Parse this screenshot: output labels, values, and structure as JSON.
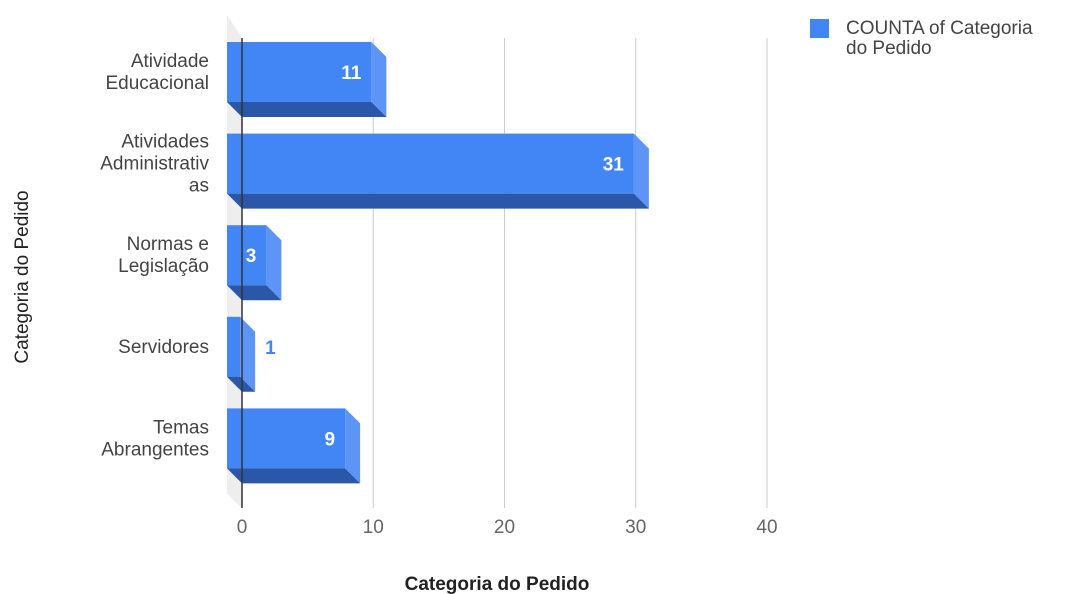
{
  "chart_data": {
    "type": "bar",
    "orientation": "horizontal",
    "categories": [
      [
        "Atividade",
        "Educacional"
      ],
      [
        "Atividades",
        "Administrativ",
        "as"
      ],
      [
        "Normas e",
        "Legislação"
      ],
      [
        "Servidores"
      ],
      [
        "Temas",
        "Abrangentes"
      ]
    ],
    "series": [
      {
        "name": "COUNTA of Categoria do Pedido",
        "values": [
          11,
          31,
          3,
          1,
          9
        ]
      }
    ],
    "data_labels": [
      "11",
      "31",
      "3",
      "1",
      "9"
    ],
    "xlabel": "Categoria do Pedido",
    "ylabel": "Categoria do Pedido",
    "xlim": [
      0,
      40
    ],
    "xticks": [
      "0",
      "10",
      "20",
      "30",
      "40"
    ],
    "grid": true,
    "style": "3d",
    "legend_position": "top-right",
    "legend_lines": [
      "COUNTA of Categoria",
      "do Pedido"
    ],
    "colors": {
      "bar_face": "#4285f4",
      "bar_side": "#5c95f5",
      "bar_bottom": "#2a57a8",
      "grid": "#cccccc",
      "data_label_inside": "#ffffff",
      "data_label_outside": "#4285f4"
    }
  }
}
